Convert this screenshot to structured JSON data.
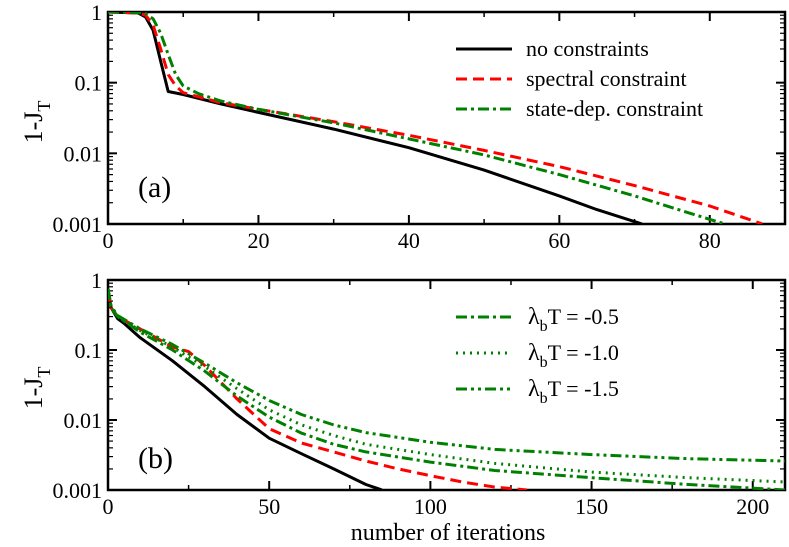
{
  "chart_data": [
    {
      "type": "line",
      "panel_label": "(a)",
      "ylabel_main": "1-J",
      "ylabel_sub": "T",
      "xlabel": "",
      "y_scale": "log",
      "xlim": [
        0,
        90
      ],
      "ylim": [
        0.001,
        1
      ],
      "x_ticks": [
        0,
        20,
        40,
        60,
        80
      ],
      "y_ticks": [
        1,
        0.1,
        0.01,
        0.001
      ],
      "y_tick_labels": [
        "1",
        "0.1",
        "0.01",
        "0.001"
      ],
      "legend_position": "top-right",
      "series": [
        {
          "name": "no constraints",
          "color": "#000000",
          "dash": "solid",
          "x": [
            0,
            4,
            5,
            6,
            7,
            8,
            10,
            15,
            20,
            30,
            40,
            50,
            60,
            65,
            71
          ],
          "y": [
            1,
            0.97,
            0.85,
            0.55,
            0.2,
            0.075,
            0.068,
            0.05,
            0.038,
            0.022,
            0.012,
            0.0058,
            0.0025,
            0.0016,
            0.001
          ]
        },
        {
          "name": "spectral constraint",
          "color": "#ff0000",
          "dash": "dashed",
          "x": [
            0,
            4,
            5,
            6,
            7,
            8,
            9,
            10,
            15,
            20,
            30,
            40,
            50,
            60,
            70,
            80,
            87
          ],
          "y": [
            1,
            0.97,
            0.9,
            0.65,
            0.3,
            0.13,
            0.09,
            0.072,
            0.052,
            0.042,
            0.028,
            0.018,
            0.011,
            0.0065,
            0.0035,
            0.0018,
            0.001
          ]
        },
        {
          "name": "state-dep. constraint",
          "color": "#008000",
          "dash": "dashdot",
          "x": [
            0,
            4,
            5,
            6,
            7,
            8,
            9,
            10,
            12,
            15,
            20,
            30,
            40,
            50,
            60,
            70,
            75,
            82
          ],
          "y": [
            1,
            0.98,
            0.95,
            0.8,
            0.5,
            0.25,
            0.13,
            0.09,
            0.07,
            0.055,
            0.042,
            0.027,
            0.016,
            0.0095,
            0.005,
            0.0025,
            0.0017,
            0.001
          ]
        }
      ]
    },
    {
      "type": "line",
      "panel_label": "(b)",
      "ylabel_main": "1-J",
      "ylabel_sub": "T",
      "xlabel": "number of iterations",
      "y_scale": "log",
      "xlim": [
        0,
        210
      ],
      "ylim": [
        0.001,
        1
      ],
      "x_ticks": [
        0,
        50,
        100,
        150,
        200
      ],
      "y_ticks": [
        1,
        0.1,
        0.01,
        0.001
      ],
      "y_tick_labels": [
        "1",
        "0.1",
        "0.01",
        "0.001"
      ],
      "legend_position": "top-right",
      "legend": [
        {
          "prefix": "λ",
          "sub": "b",
          "suffix": "T = -0.5",
          "color": "#008000",
          "dash": "dashdot"
        },
        {
          "prefix": "λ",
          "sub": "b",
          "suffix": "T = -1.0",
          "color": "#008000",
          "dash": "dotted"
        },
        {
          "prefix": "λ",
          "sub": "b",
          "suffix": "T = -1.5",
          "color": "#008000",
          "dash": "dashdotdot"
        }
      ],
      "series": [
        {
          "name": "no constraints",
          "color": "#000000",
          "dash": "solid",
          "x": [
            0,
            1,
            3,
            5,
            10,
            20,
            30,
            40,
            50,
            60,
            70,
            80,
            85
          ],
          "y": [
            0.7,
            0.4,
            0.28,
            0.24,
            0.15,
            0.07,
            0.03,
            0.012,
            0.0055,
            0.0033,
            0.002,
            0.0012,
            0.001
          ]
        },
        {
          "name": "spectral constraint",
          "color": "#ff0000",
          "dash": "dashed",
          "x": [
            0,
            1,
            3,
            10,
            20,
            25,
            30,
            40,
            50,
            60,
            70,
            80,
            90,
            100,
            110,
            120,
            130
          ],
          "y": [
            0.7,
            0.4,
            0.3,
            0.2,
            0.11,
            0.095,
            0.06,
            0.02,
            0.0075,
            0.0047,
            0.0035,
            0.0026,
            0.002,
            0.0016,
            0.0013,
            0.0011,
            0.001
          ]
        },
        {
          "name": "λbT = -0.5",
          "color": "#008000",
          "dash": "dashdot",
          "x": [
            0,
            1,
            3,
            10,
            20,
            30,
            40,
            50,
            60,
            70,
            80,
            100,
            120,
            150,
            180,
            210
          ],
          "y": [
            0.75,
            0.4,
            0.3,
            0.18,
            0.1,
            0.05,
            0.022,
            0.011,
            0.0065,
            0.0045,
            0.0035,
            0.0025,
            0.0019,
            0.0015,
            0.0012,
            0.001
          ]
        },
        {
          "name": "λbT = -1.0",
          "color": "#008000",
          "dash": "dotted",
          "x": [
            0,
            1,
            3,
            10,
            20,
            30,
            40,
            50,
            60,
            70,
            80,
            100,
            120,
            150,
            180,
            210
          ],
          "y": [
            0.75,
            0.4,
            0.3,
            0.19,
            0.11,
            0.058,
            0.028,
            0.014,
            0.0085,
            0.006,
            0.0045,
            0.0032,
            0.0024,
            0.0018,
            0.0015,
            0.0013
          ]
        },
        {
          "name": "λbT = -1.5",
          "color": "#008000",
          "dash": "dashdotdot",
          "x": [
            0,
            1,
            3,
            10,
            20,
            30,
            40,
            50,
            60,
            70,
            80,
            100,
            120,
            150,
            180,
            210
          ],
          "y": [
            0.75,
            0.42,
            0.31,
            0.2,
            0.12,
            0.065,
            0.034,
            0.019,
            0.012,
            0.0085,
            0.0066,
            0.0048,
            0.0038,
            0.0032,
            0.0028,
            0.0026
          ]
        }
      ]
    }
  ]
}
